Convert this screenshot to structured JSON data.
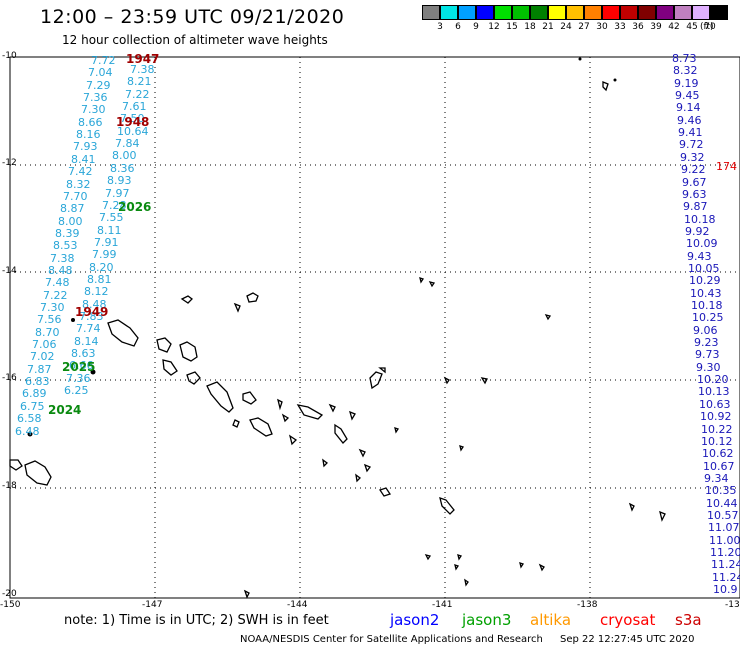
{
  "title": "12:00 – 23:59 UTC 09/21/2020",
  "subtitle": "12 hour collection of altimeter wave heights",
  "color_scale": {
    "colors": [
      "#7f7f7f",
      "#00e5e5",
      "#00a0ff",
      "#0000ff",
      "#00e000",
      "#00c000",
      "#008000",
      "#ffff00",
      "#ffc000",
      "#ff8000",
      "#ff0000",
      "#c00000",
      "#800000",
      "#800080",
      "#c080c0",
      "#e0b0ff",
      "#000000"
    ],
    "labels": [
      "3",
      "6",
      "9",
      "12",
      "15",
      "18",
      "21",
      "24",
      "27",
      "30",
      "33",
      "36",
      "39",
      "42",
      "45",
      "70"
    ],
    "unit": "(ft)"
  },
  "axes": {
    "y_labels": [
      "-10",
      "-12",
      "-14",
      "-16",
      "-18",
      "-20"
    ],
    "x_labels": [
      "-150",
      "-147",
      "-144",
      "-141",
      "-138",
      "-13"
    ]
  },
  "left_track": [
    "7.72",
    "7.04",
    "7.29",
    "7.36",
    "7.30",
    "8.66",
    "8.16",
    "7.93",
    "8.41",
    "7.42",
    "8.32",
    "7.70",
    "8.87",
    "8.00",
    "8.39",
    "8.53",
    "7.38",
    "8.48",
    "7.48",
    "7.22",
    "7.30",
    "7.56",
    "8.70",
    "7.06",
    "7.02",
    "7.87",
    "6.83",
    "6.89",
    "6.75",
    "6.58",
    "6.48"
  ],
  "middle_track": [
    "7.38",
    "8.21",
    "7.22",
    "7.61",
    "7.50",
    "10.64",
    "7.84",
    "8.00",
    "8.36",
    "8.93",
    "7.97",
    "7.28",
    "7.55",
    "8.11",
    "7.91",
    "7.99",
    "8.20",
    "8.81",
    "8.12",
    "8.48",
    "7.83",
    "7.74",
    "8.14",
    "8.63",
    "6.66",
    "7.36",
    "6.25"
  ],
  "right_track": [
    "8.73",
    "8.32",
    "9.19",
    "9.45",
    "9.14",
    "9.46",
    "9.41",
    "9.72",
    "9.32",
    "9.22",
    "9.67",
    "9.63",
    "9.87",
    "10.18",
    "9.92",
    "10.09",
    "9.43",
    "10.05",
    "10.29",
    "10.43",
    "10.18",
    "10.25",
    "9.06",
    "9.23",
    "9.73",
    "9.30",
    "10.20",
    "10.13",
    "10.63",
    "10.92",
    "10.22",
    "10.12",
    "10.62",
    "10.67",
    "9.34",
    "10.35",
    "10.44",
    "10.57",
    "11.07",
    "11.00",
    "11.20",
    "11.24",
    "11.24",
    "10.9"
  ],
  "pass_labels": {
    "p1947": "1947",
    "p1948": "1948",
    "p2026": "2026",
    "p1949": "1949",
    "p2025": "2025",
    "p2024": "2024",
    "p174": "174"
  },
  "note": "note: 1) Time is in UTC; 2) SWH is in feet",
  "satellites": [
    {
      "name": "jason2",
      "color": "#0000ff"
    },
    {
      "name": "jason3",
      "color": "#00a000"
    },
    {
      "name": "altika",
      "color": "#ff9900"
    },
    {
      "name": "cryosat",
      "color": "#ff0000"
    },
    {
      "name": "s3a",
      "color": "#cc0000"
    }
  ],
  "footer": "NOAA/NESDIS Center for Satellite Applications and Research",
  "timestamp": "Sep 22 12:27:45 UTC 2020"
}
